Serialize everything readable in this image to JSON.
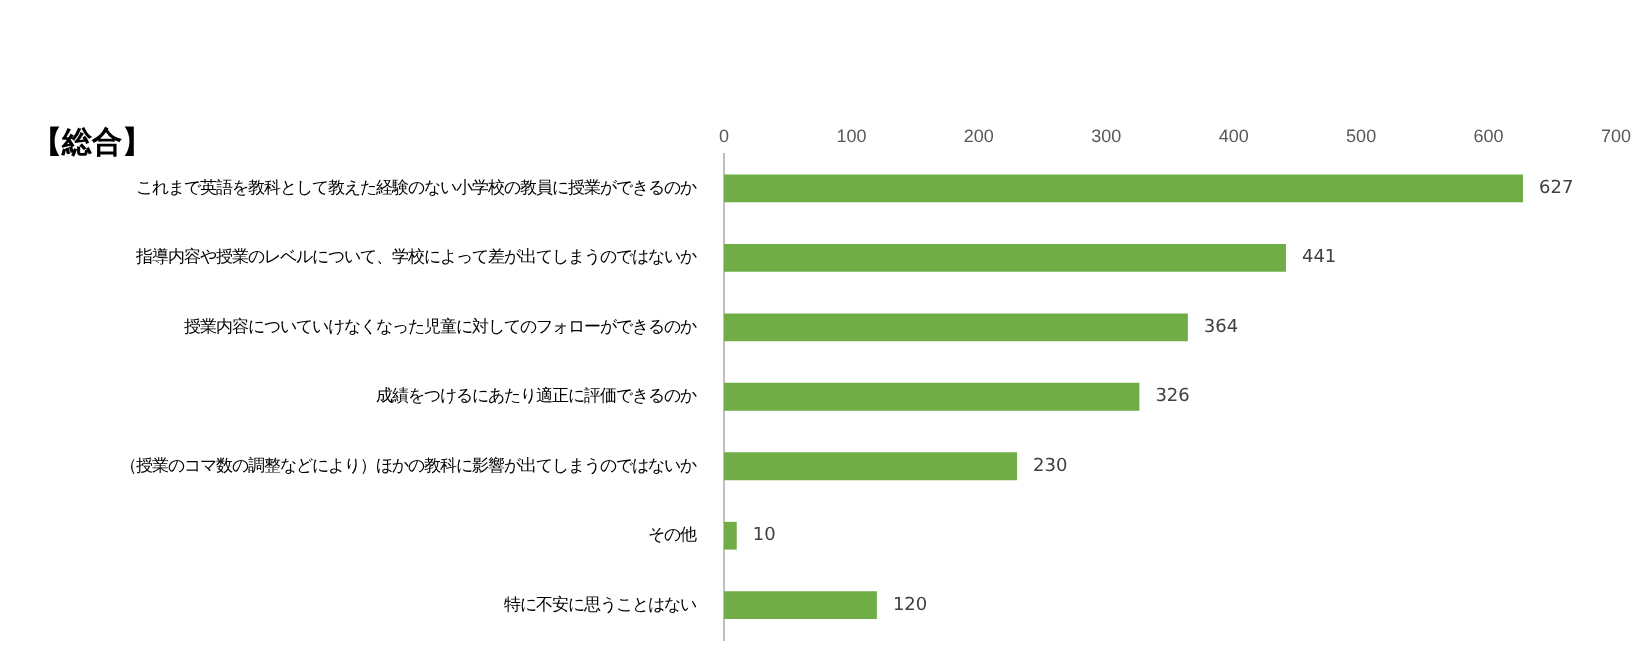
{
  "chart_data": {
    "type": "bar",
    "orientation": "horizontal",
    "title": "【総合】",
    "categories": [
      "これまで英語を教科として教えた経験のない小学校の教員に授業ができるのか",
      "指導内容や授業のレベルについて、学校によって差が出てしまうのではないか",
      "授業内容についていけなくなった児童に対してのフォローができるのか",
      "成績をつけるにあたり適正に評価できるのか",
      "（授業のコマ数の調整などにより）ほかの教科に影響が出てしまうのではないか",
      "その他",
      "特に不安に思うことはない"
    ],
    "values": [
      627,
      441,
      364,
      326,
      230,
      10,
      120
    ],
    "color": "#70ad47",
    "xlim": [
      0,
      700
    ],
    "xticks": [
      0,
      100,
      200,
      300,
      400,
      500,
      600,
      700
    ],
    "grid": false,
    "legend": false,
    "data_labels": true
  }
}
